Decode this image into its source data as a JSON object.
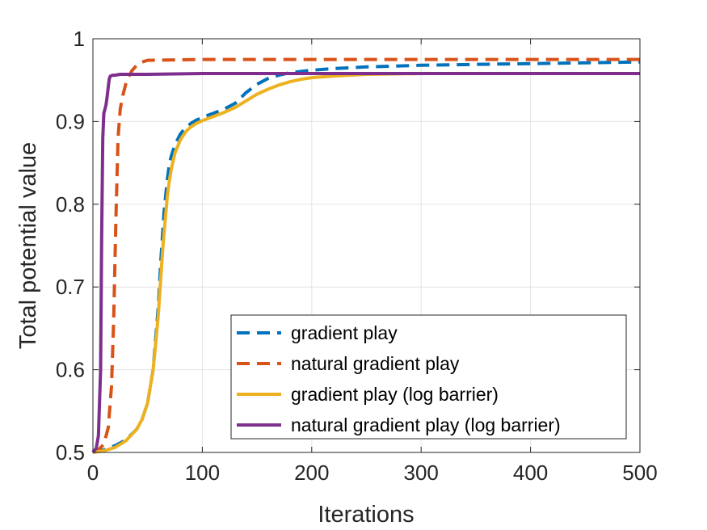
{
  "chart_data": {
    "type": "line",
    "title": "",
    "xlabel": "Iterations",
    "ylabel": "Total potential value",
    "xlim": [
      0,
      500
    ],
    "ylim": [
      0.5,
      1
    ],
    "xticks": [
      0,
      100,
      200,
      300,
      400,
      500
    ],
    "yticks": [
      0.5,
      0.6,
      0.7,
      0.8,
      0.9,
      1
    ],
    "xtick_labels": [
      "0",
      "100",
      "200",
      "300",
      "400",
      "500"
    ],
    "ytick_labels": [
      "0.5",
      "0.6",
      "0.7",
      "0.8",
      "0.9",
      "1"
    ],
    "grid": true,
    "legend_position": "bottom-right",
    "series": [
      {
        "name": "gradient play",
        "color": "#0072BD",
        "style": "dashed",
        "x": [
          0,
          10,
          20,
          30,
          40,
          45,
          50,
          55,
          60,
          62,
          65,
          68,
          70,
          72,
          75,
          80,
          85,
          90,
          95,
          100,
          110,
          120,
          130,
          140,
          150,
          160,
          170,
          180,
          200,
          220,
          250,
          300,
          350,
          400,
          450,
          500
        ],
        "y": [
          0.5,
          0.503,
          0.508,
          0.515,
          0.528,
          0.54,
          0.56,
          0.6,
          0.68,
          0.73,
          0.79,
          0.83,
          0.85,
          0.86,
          0.872,
          0.885,
          0.893,
          0.898,
          0.902,
          0.905,
          0.91,
          0.915,
          0.922,
          0.935,
          0.945,
          0.952,
          0.956,
          0.959,
          0.962,
          0.964,
          0.966,
          0.968,
          0.969,
          0.97,
          0.971,
          0.972
        ]
      },
      {
        "name": "natural gradient play",
        "color": "#D95319",
        "style": "dashed",
        "x": [
          0,
          5,
          10,
          14,
          17,
          19,
          21,
          23,
          25,
          27,
          30,
          33,
          36,
          40,
          45,
          50,
          100,
          200,
          300,
          400,
          500
        ],
        "y": [
          0.5,
          0.503,
          0.51,
          0.53,
          0.58,
          0.66,
          0.78,
          0.88,
          0.915,
          0.93,
          0.945,
          0.955,
          0.962,
          0.968,
          0.972,
          0.974,
          0.975,
          0.975,
          0.975,
          0.975,
          0.975
        ]
      },
      {
        "name": "gradient play (log barrier)",
        "color": "#EDB120",
        "style": "solid",
        "x": [
          0,
          10,
          20,
          30,
          40,
          45,
          50,
          55,
          58,
          60,
          62,
          64,
          66,
          68,
          70,
          72,
          75,
          80,
          85,
          90,
          95,
          100,
          110,
          120,
          130,
          140,
          150,
          160,
          170,
          180,
          190,
          200,
          220,
          250,
          300,
          350,
          400,
          450,
          500
        ],
        "y": [
          0.5,
          0.502,
          0.506,
          0.514,
          0.528,
          0.54,
          0.56,
          0.6,
          0.64,
          0.67,
          0.71,
          0.75,
          0.78,
          0.81,
          0.83,
          0.845,
          0.862,
          0.878,
          0.888,
          0.894,
          0.898,
          0.901,
          0.906,
          0.911,
          0.917,
          0.925,
          0.933,
          0.939,
          0.944,
          0.948,
          0.951,
          0.953,
          0.955,
          0.957,
          0.958,
          0.958,
          0.958,
          0.958,
          0.958
        ]
      },
      {
        "name": "natural gradient play (log barrier)",
        "color": "#7E2F8E",
        "style": "solid",
        "x": [
          0,
          3,
          5,
          7,
          8,
          9,
          10,
          11,
          12,
          13,
          14,
          15,
          16,
          18,
          20,
          25,
          30,
          50,
          100,
          200,
          300,
          400,
          500
        ],
        "y": [
          0.5,
          0.505,
          0.52,
          0.6,
          0.76,
          0.88,
          0.91,
          0.915,
          0.92,
          0.93,
          0.942,
          0.952,
          0.955,
          0.956,
          0.956,
          0.957,
          0.957,
          0.957,
          0.958,
          0.958,
          0.958,
          0.958,
          0.958
        ]
      }
    ]
  }
}
